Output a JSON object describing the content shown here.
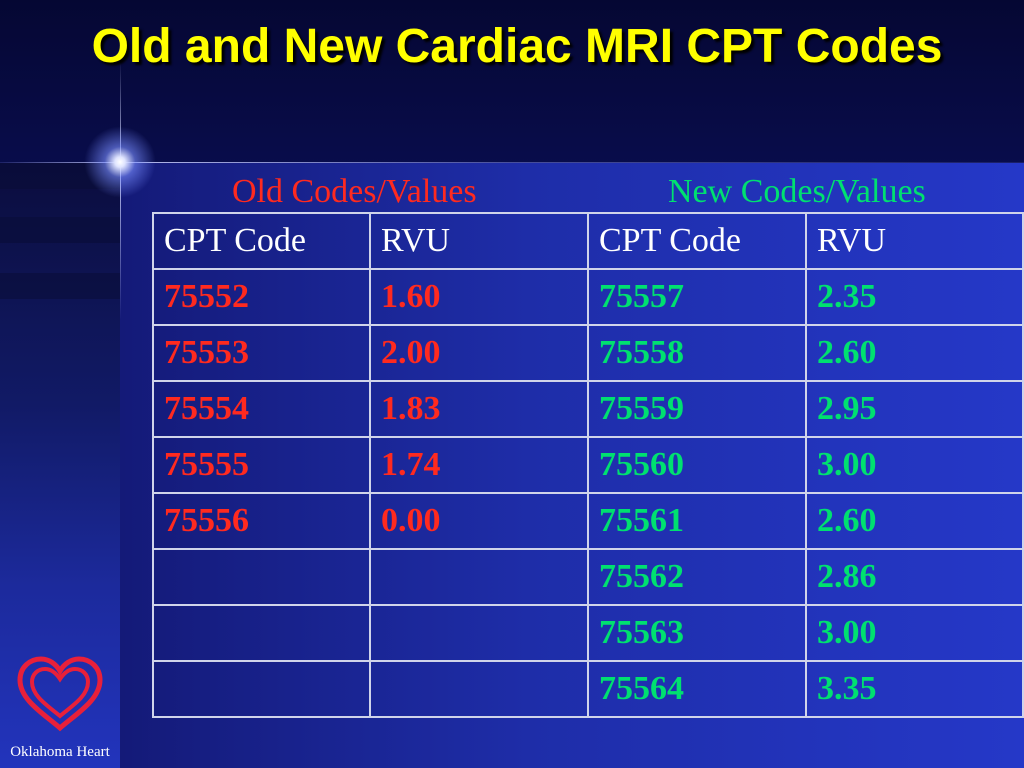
{
  "slide": {
    "title": "Old and New Cardiac MRI CPT Codes",
    "title_color": "#ffff00"
  },
  "groups": {
    "old": {
      "label": "Old Codes/Values",
      "color": "#ff2a1f"
    },
    "new": {
      "label": "New Codes/Values",
      "color": "#00e070"
    }
  },
  "table": {
    "headers": [
      "CPT Code",
      "RVU",
      "CPT Code",
      "RVU"
    ],
    "rows": [
      {
        "old_code": "75552",
        "old_rvu": "1.60",
        "new_code": "75557",
        "new_rvu": "2.35"
      },
      {
        "old_code": "75553",
        "old_rvu": "2.00",
        "new_code": "75558",
        "new_rvu": "2.60"
      },
      {
        "old_code": "75554",
        "old_rvu": "1.83",
        "new_code": "75559",
        "new_rvu": "2.95"
      },
      {
        "old_code": "75555",
        "old_rvu": "1.74",
        "new_code": "75560",
        "new_rvu": "3.00"
      },
      {
        "old_code": "75556",
        "old_rvu": "0.00",
        "new_code": "75561",
        "new_rvu": "2.60"
      },
      {
        "old_code": "",
        "old_rvu": "",
        "new_code": "75562",
        "new_rvu": "2.86"
      },
      {
        "old_code": "",
        "old_rvu": "",
        "new_code": "75563",
        "new_rvu": "3.00"
      },
      {
        "old_code": "",
        "old_rvu": "",
        "new_code": "75564",
        "new_rvu": "3.35"
      }
    ]
  },
  "logo": {
    "icon": "heart-logo-icon",
    "org_name": "Oklahoma Heart",
    "color": "#e8203a"
  }
}
